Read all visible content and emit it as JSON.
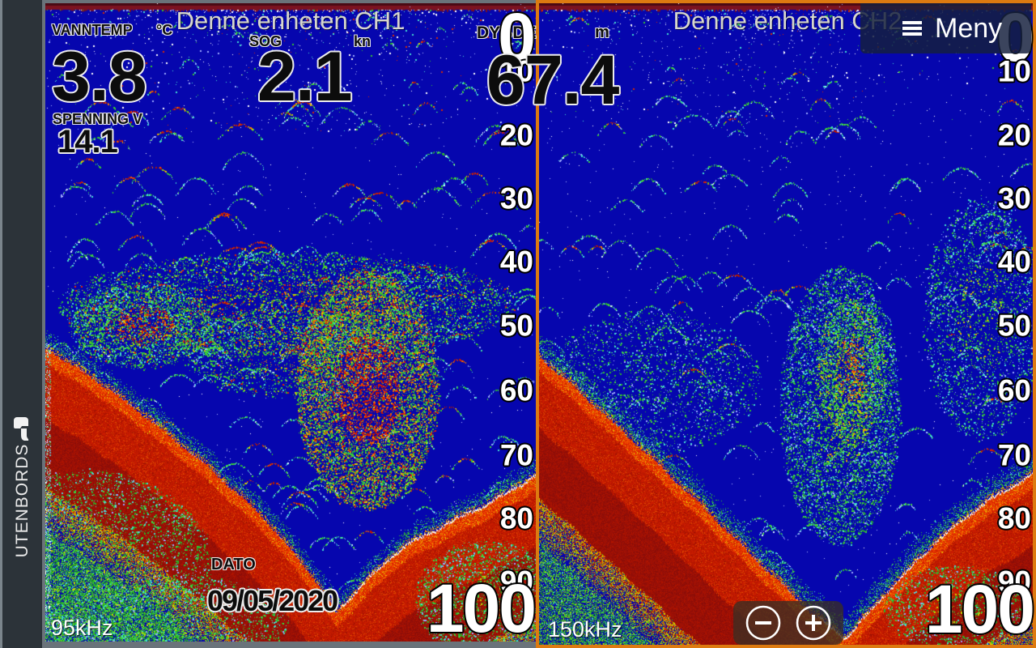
{
  "sidebar": {
    "label": "UTENBORDS"
  },
  "menu": {
    "label": "Meny"
  },
  "panels": {
    "left": {
      "title": "Denne enheten CH1",
      "frequency": "95kHz",
      "readouts": {
        "vanntemp": {
          "label": "VANNTEMP",
          "unit": "°C",
          "value": "3.8"
        },
        "sog": {
          "label": "SOG",
          "unit": "kn",
          "value": "2.1"
        },
        "dybde": {
          "label": "DYBDE",
          "value": "67.4"
        },
        "spenning": {
          "label": "SPENNING V",
          "value": "14.1"
        },
        "dato": {
          "label": "DATO",
          "value": "09/05/2020"
        }
      },
      "depth_scale": {
        "top": "0",
        "ticks": [
          "10",
          "20",
          "30",
          "40",
          "50",
          "60",
          "70",
          "80",
          "90"
        ],
        "bottom": "100"
      }
    },
    "right": {
      "title": "Denne enheten CH2",
      "unit": "m",
      "frequency": "150kHz",
      "depth_scale": {
        "top": "0",
        "ticks": [
          "10",
          "20",
          "30",
          "40",
          "50",
          "60",
          "70",
          "80",
          "90"
        ],
        "bottom": "100"
      }
    }
  },
  "icons": {
    "menu": "hamburger-icon",
    "zoom_in": "plus-icon",
    "zoom_out": "minus-icon",
    "sidebar": "outboard-motor-icon"
  },
  "colors": {
    "accent_orange": "#DD7A10",
    "sonar_blue": "#0606AE",
    "bottom_red": "#C41C00",
    "surface_maroon": "#7C1220",
    "sidebar_bg": "#2C3339",
    "menu_bg": "rgba(22,32,62,0.84)",
    "title_text": "#D6D6CC"
  }
}
